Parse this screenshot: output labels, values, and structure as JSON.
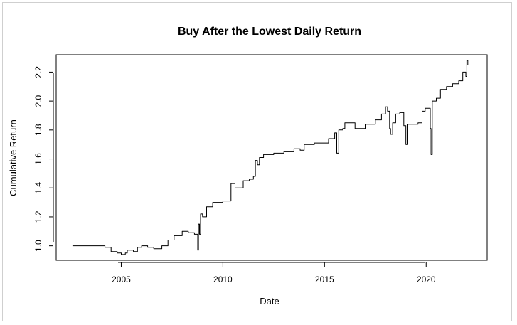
{
  "chart_data": {
    "type": "line",
    "title": "Buy After the Lowest Daily Return",
    "xlabel": "Date",
    "ylabel": "Cumulative Return",
    "xlim": [
      2001.8,
      2023.0
    ],
    "ylim": [
      0.9,
      2.32
    ],
    "xticks": [
      2005,
      2010,
      2015,
      2020
    ],
    "xtick_labels": [
      "2005",
      "2010",
      "2015",
      "2020"
    ],
    "yticks": [
      1.0,
      1.2,
      1.4,
      1.6,
      1.8,
      2.0,
      2.2
    ],
    "ytick_labels": [
      "1.0",
      "1.2",
      "1.4",
      "1.6",
      "1.8",
      "2.0",
      "2.2"
    ],
    "grid": false,
    "line_color": "#000000",
    "series": [
      {
        "x": [
          2002.6,
          2004.0,
          2004.2,
          2004.5,
          2004.8,
          2005.0,
          2005.2,
          2005.3,
          2005.6,
          2005.8,
          2006.0,
          2006.3,
          2006.6,
          2007.0,
          2007.3,
          2007.6,
          2008.0,
          2008.3,
          2008.6,
          2008.72,
          2008.76,
          2008.8,
          2008.85,
          2008.9,
          2009.0,
          2009.2,
          2009.5,
          2010.0,
          2010.3,
          2010.4,
          2010.6,
          2011.0,
          2011.3,
          2011.5,
          2011.6,
          2011.7,
          2011.8,
          2012.0,
          2012.5,
          2013.0,
          2013.5,
          2013.8,
          2014.0,
          2014.5,
          2014.8,
          2015.2,
          2015.5,
          2015.6,
          2015.7,
          2015.9,
          2016.0,
          2016.5,
          2017.0,
          2017.5,
          2017.8,
          2018.0,
          2018.1,
          2018.2,
          2018.25,
          2018.35,
          2018.5,
          2018.7,
          2018.9,
          2019.0,
          2019.1,
          2019.4,
          2019.6,
          2019.8,
          2019.95,
          2020.1,
          2020.2,
          2020.24,
          2020.3,
          2020.5,
          2020.7,
          2021.0,
          2021.3,
          2021.6,
          2021.8,
          2021.95,
          2022.0,
          2022.05
        ],
        "y": [
          1.0,
          1.0,
          0.99,
          0.96,
          0.95,
          0.94,
          0.95,
          0.97,
          0.96,
          0.99,
          1.0,
          0.99,
          0.98,
          1.0,
          1.04,
          1.07,
          1.1,
          1.09,
          1.08,
          1.08,
          0.97,
          1.15,
          1.08,
          1.22,
          1.2,
          1.27,
          1.3,
          1.31,
          1.31,
          1.43,
          1.4,
          1.45,
          1.46,
          1.48,
          1.59,
          1.56,
          1.61,
          1.63,
          1.64,
          1.65,
          1.67,
          1.66,
          1.7,
          1.71,
          1.71,
          1.74,
          1.78,
          1.64,
          1.8,
          1.81,
          1.85,
          1.81,
          1.84,
          1.87,
          1.91,
          1.96,
          1.93,
          1.81,
          1.77,
          1.85,
          1.91,
          1.92,
          1.83,
          1.7,
          1.84,
          1.84,
          1.85,
          1.93,
          1.95,
          1.95,
          1.81,
          1.63,
          2.0,
          2.02,
          2.08,
          2.1,
          2.12,
          2.14,
          2.2,
          2.17,
          2.28,
          2.25
        ]
      }
    ]
  }
}
